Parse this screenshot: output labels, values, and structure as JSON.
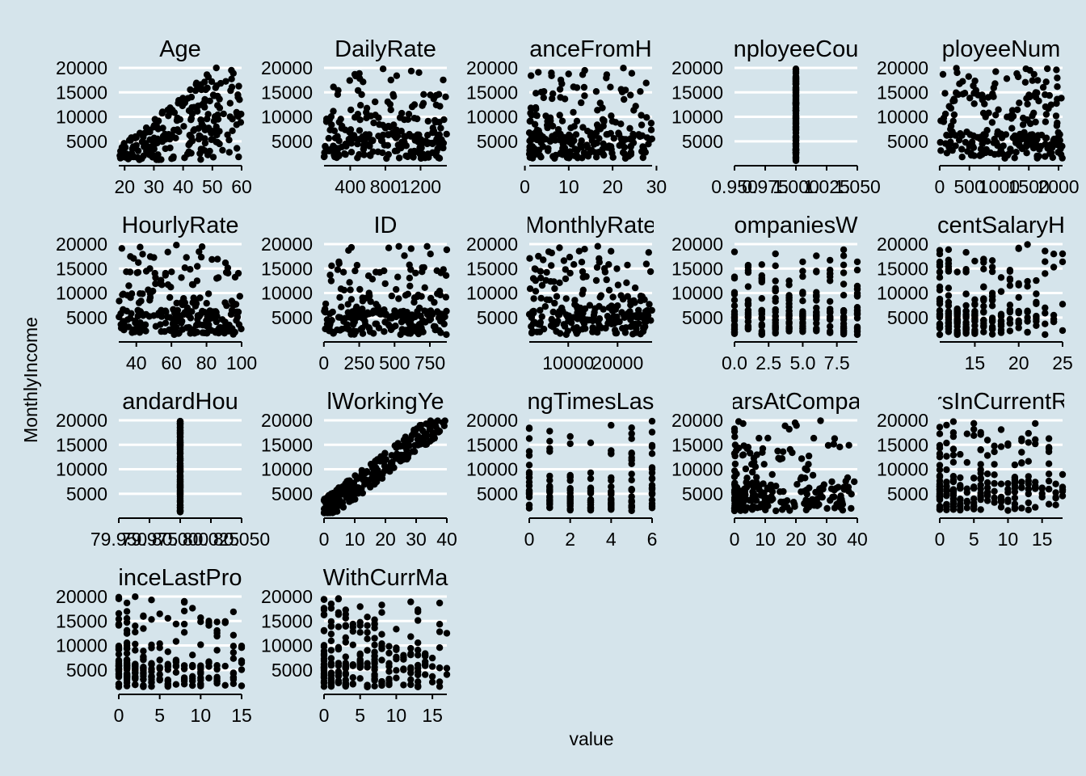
{
  "chart_data": {
    "type": "scatter",
    "xlabel": "value",
    "ylabel": "MonthlyIncome",
    "grid": true,
    "layout": "facet_wrap",
    "y_ticks": [
      5000,
      10000,
      15000,
      20000
    ],
    "ylim": [
      1009,
      19999
    ],
    "panels": [
      {
        "title": "Age",
        "xlim": [
          18,
          60
        ],
        "xticks": [
          "20",
          "30",
          "40",
          "50",
          "60"
        ],
        "xtick_values": [
          20,
          30,
          40,
          50,
          60
        ],
        "pattern": "age"
      },
      {
        "title": "DailyRate",
        "xlim": [
          102,
          1499
        ],
        "xticks": [
          "400",
          "800",
          "1200"
        ],
        "xtick_values": [
          400,
          800,
          1200
        ],
        "pattern": "uniform"
      },
      {
        "title": "ceFromH",
        "title_full_clip": "anceFromH",
        "xlim": [
          1,
          29
        ],
        "xticks": [
          "0",
          "10",
          "20",
          "30"
        ],
        "xtick_values": [
          0,
          10,
          20,
          30
        ],
        "pattern": "uniform_right_skew"
      },
      {
        "title": "nployeeCou",
        "xlim": [
          0.95,
          1.05
        ],
        "xticks": [
          "0.950",
          "0.975",
          "1.000",
          "1.025",
          "1.050"
        ],
        "xtick_values": [
          0.95,
          0.975,
          1.0,
          1.025,
          1.05
        ],
        "xtick_text": "0.950.9751.0001.0251.050",
        "pattern": "constant",
        "constant_x": 1.0
      },
      {
        "title": "ployeeNum",
        "xlim": [
          1,
          2068
        ],
        "xticks": [
          "0",
          "500",
          "1000",
          "1500",
          "2000"
        ],
        "xtick_values": [
          0,
          500,
          1000,
          1500,
          2000
        ],
        "xtick_text": "0 500100015002000",
        "pattern": "uniform"
      },
      {
        "title": "HourlyRate",
        "xlim": [
          30,
          100
        ],
        "xticks": [
          "40",
          "60",
          "80",
          "100"
        ],
        "xtick_values": [
          40,
          60,
          80,
          100
        ],
        "pattern": "uniform"
      },
      {
        "title": "ID",
        "xlim": [
          1,
          870
        ],
        "xticks": [
          "0",
          "250",
          "500",
          "750"
        ],
        "xtick_values": [
          0,
          250,
          500,
          750
        ],
        "xtick_text": "0 250500750",
        "pattern": "uniform"
      },
      {
        "title": "MonthlyRate",
        "xlim": [
          2094,
          26999
        ],
        "xticks": [
          "10000",
          "20000"
        ],
        "xtick_values": [
          10000,
          20000
        ],
        "xtick_text": "1000020000",
        "pattern": "uniform"
      },
      {
        "title": "ompaniesW",
        "xlim": [
          0,
          9
        ],
        "xticks": [
          "0.0",
          "2.5",
          "5.0",
          "7.5"
        ],
        "xtick_values": [
          0,
          2.5,
          5,
          7.5
        ],
        "xtick_text": "0.02.55.07.5",
        "pattern": "discrete",
        "discrete_values": [
          0,
          1,
          2,
          3,
          4,
          5,
          6,
          7,
          8,
          9
        ]
      },
      {
        "title": "centSalaryH",
        "xlim": [
          11,
          25
        ],
        "xticks": [
          "15",
          "20",
          "25"
        ],
        "xtick_values": [
          15,
          20,
          25
        ],
        "pattern": "discrete_dense",
        "discrete_values": [
          11,
          12,
          13,
          14,
          15,
          16,
          17,
          18,
          19,
          20,
          21,
          22,
          23,
          24,
          25
        ]
      },
      {
        "title": "andardHou",
        "xlim": [
          79.95,
          80.05
        ],
        "xticks": [
          "79.950",
          "79.975",
          "80.000",
          "80.025",
          "80.050"
        ],
        "xtick_values": [
          79.95,
          79.975,
          80.0,
          80.025,
          80.05
        ],
        "xtick_text": "79.9579.97580.00080.02580.050",
        "pattern": "constant",
        "constant_x": 80.0
      },
      {
        "title": "lWorkingYe",
        "xlim": [
          0,
          40
        ],
        "xticks": [
          "0",
          "10",
          "20",
          "30",
          "40"
        ],
        "xtick_values": [
          0,
          10,
          20,
          30,
          40
        ],
        "pattern": "linear_trend"
      },
      {
        "title": "ngTimesLas",
        "xlim": [
          0,
          6
        ],
        "xticks": [
          "0",
          "2",
          "4",
          "6"
        ],
        "xtick_values": [
          0,
          2,
          4,
          6
        ],
        "pattern": "discrete",
        "discrete_values": [
          0,
          1,
          2,
          3,
          4,
          5,
          6
        ]
      },
      {
        "title": "arsAtCompa",
        "xlim": [
          0,
          40
        ],
        "xticks": [
          "0",
          "10",
          "20",
          "30",
          "40"
        ],
        "xtick_values": [
          0,
          10,
          20,
          30,
          40
        ],
        "pattern": "left_skew"
      },
      {
        "title": "rsInCurrentR",
        "xlim": [
          0,
          18
        ],
        "xticks": [
          "0",
          "5",
          "10",
          "15"
        ],
        "xtick_values": [
          0,
          5,
          10,
          15
        ],
        "pattern": "left_skew_discrete"
      },
      {
        "title": "inceLastPro",
        "xlim": [
          0,
          15
        ],
        "xticks": [
          "0",
          "5",
          "10",
          "15"
        ],
        "xtick_values": [
          0,
          5,
          10,
          15
        ],
        "pattern": "left_skew_discrete"
      },
      {
        "title": "WithCurrMa",
        "xlim": [
          0,
          17
        ],
        "xticks": [
          "0",
          "5",
          "10",
          "15"
        ],
        "xtick_values": [
          0,
          5,
          10,
          15
        ],
        "pattern": "left_skew_discrete"
      }
    ]
  }
}
